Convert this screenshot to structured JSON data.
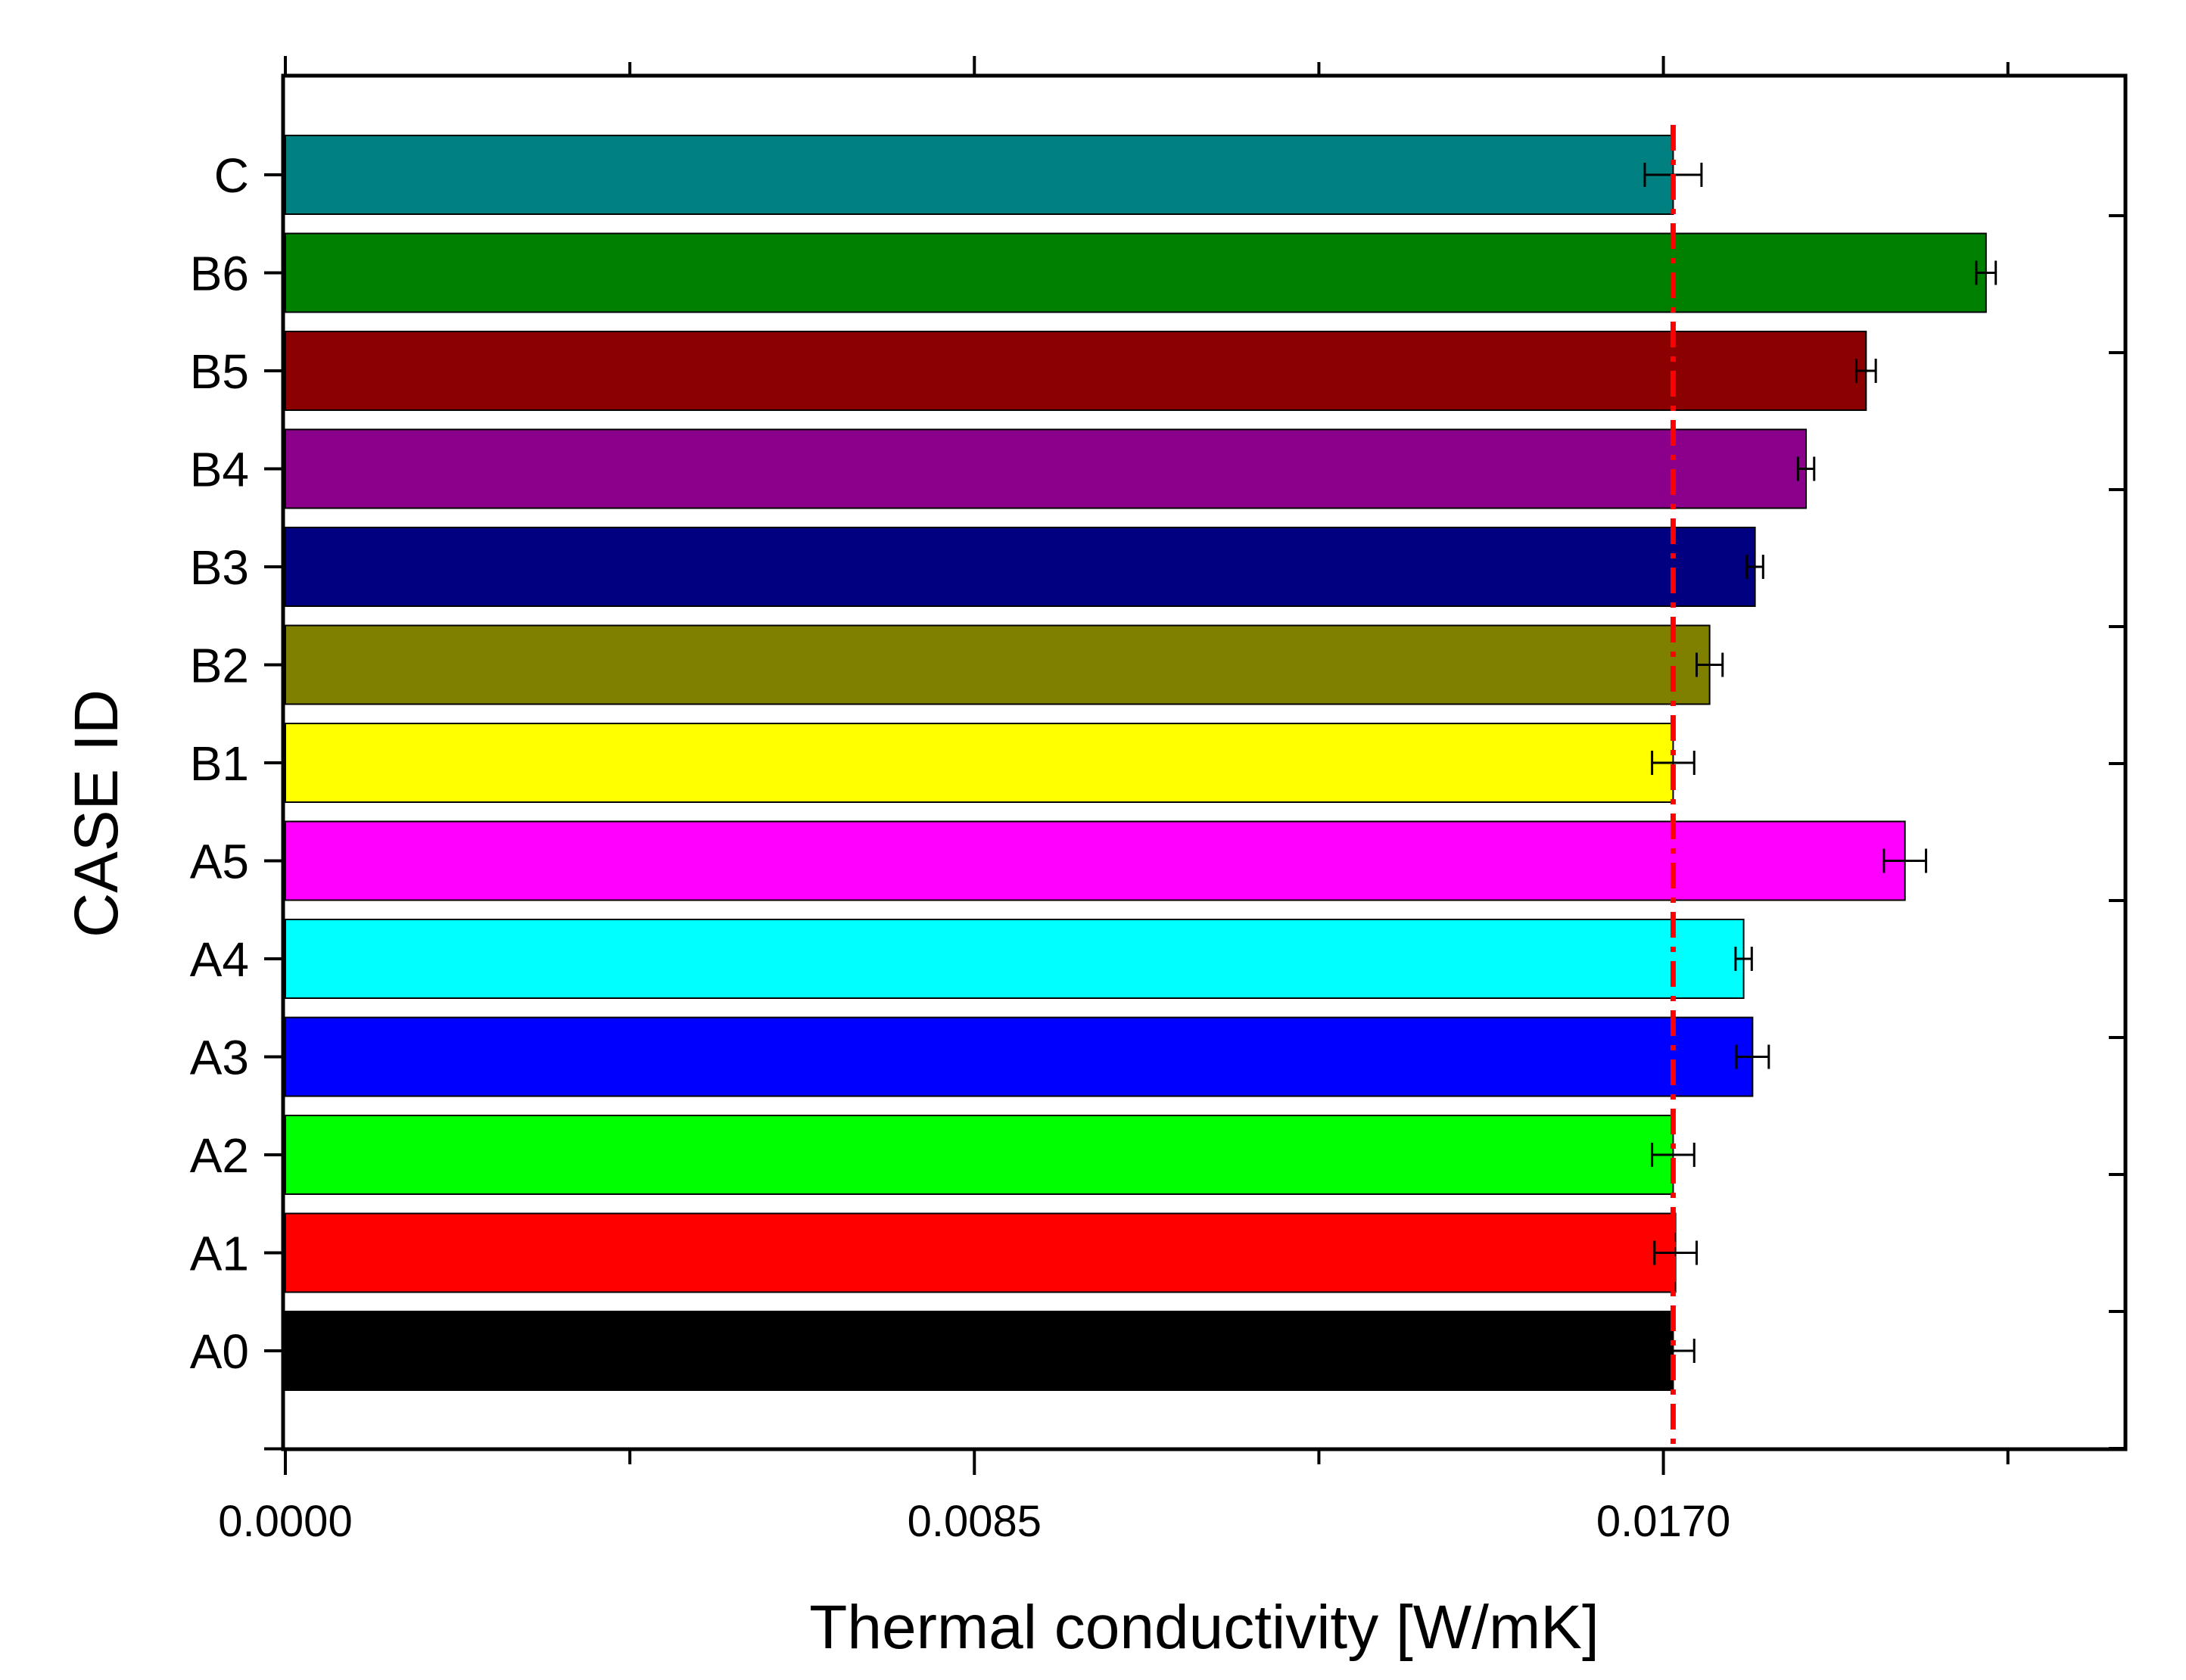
{
  "chart_data": {
    "type": "bar",
    "orientation": "horizontal",
    "title": "",
    "xlabel": "Thermal conductivity [W/mK]",
    "ylabel": "CASE ID",
    "xlim": [
      0,
      0.0227
    ],
    "major_ticks": [
      0.0,
      0.0085,
      0.017
    ],
    "tick_labels": [
      "0.0000",
      "0.0085",
      "0.0170"
    ],
    "minor_ticks": [
      0.00425,
      0.01275,
      0.02125
    ],
    "reference_line": {
      "value": 0.01712,
      "style": "dash-dot",
      "color": "#ff0000"
    },
    "categories": [
      "C",
      "B6",
      "B5",
      "B4",
      "B3",
      "B2",
      "B1",
      "A5",
      "A4",
      "A3",
      "A2",
      "A1",
      "A0"
    ],
    "values": [
      0.01712,
      0.02098,
      0.0195,
      0.01876,
      0.01813,
      0.01757,
      0.01712,
      0.01998,
      0.01799,
      0.0181,
      0.01712,
      0.01715,
      0.01712
    ],
    "errors": [
      0.00035,
      0.00012,
      0.00012,
      0.0001,
      0.0001,
      0.00016,
      0.00026,
      0.00026,
      0.0001,
      0.0002,
      0.00026,
      0.00026,
      0.00026
    ],
    "colors": [
      "#008080",
      "#008000",
      "#8b0000",
      "#8b008b",
      "#000080",
      "#808000",
      "#ffff00",
      "#ff00ff",
      "#00ffff",
      "#0000ff",
      "#00ff00",
      "#ff0000",
      "#000000"
    ]
  }
}
